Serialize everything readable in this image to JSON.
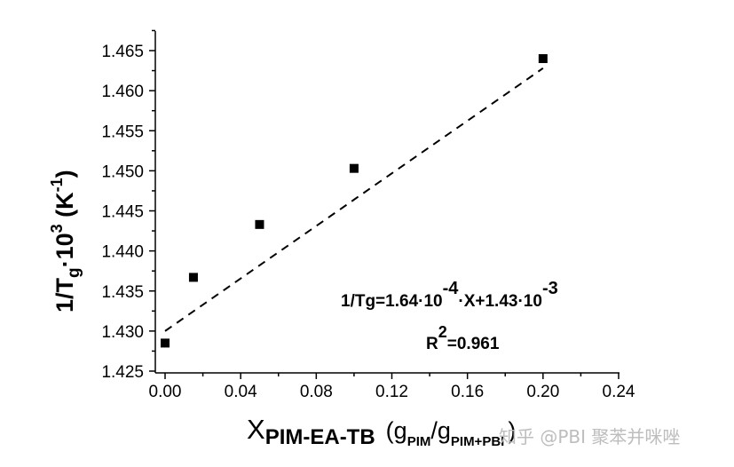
{
  "chart_data": {
    "type": "scatter",
    "title": "",
    "xlabel": "X_PIM-EA-TB (g_PIM/g_PIM+PBI)",
    "ylabel": "1/Tg·10^3 (K^-1)",
    "xlim": [
      -0.01,
      0.24
    ],
    "ylim": [
      1.425,
      1.4675
    ],
    "grid": false,
    "legend": null,
    "x_ticks": [
      "0.00",
      "0.04",
      "0.08",
      "0.12",
      "0.16",
      "0.20",
      "0.24"
    ],
    "y_ticks": [
      "1.425",
      "1.430",
      "1.435",
      "1.440",
      "1.445",
      "1.450",
      "1.455",
      "1.460",
      "1.465"
    ],
    "series": [
      {
        "name": "data",
        "marker": "square",
        "color": "#000000",
        "x": [
          0.0,
          0.015,
          0.05,
          0.1,
          0.2
        ],
        "y": [
          1.4285,
          1.4367,
          1.4433,
          1.4503,
          1.464
        ]
      },
      {
        "name": "linear fit",
        "style": "dashed",
        "color": "#000000",
        "x": [
          0.0,
          0.2
        ],
        "y": [
          1.43,
          1.4628
        ]
      }
    ],
    "annotations": [
      "1/Tg=1.64·10^-4·X+1.43·10^-3",
      "R^2=0.961"
    ]
  },
  "labels": {
    "y_title_main": "1/T",
    "y_title_sub": "g",
    "y_title_mid": "·10",
    "y_title_sup": "3",
    "y_title_end": " (K",
    "y_title_sup2": "-1",
    "y_title_close": ")",
    "x_title_main": "X",
    "x_title_sub": "PIM-EA-TB",
    "x_title_paren": "(g",
    "x_title_sub2": "PIM",
    "x_title_slash": "/g",
    "x_title_sub3": "PIM+PBI",
    "x_title_close": ")",
    "eq_part1": "1/Tg=1.64·10",
    "eq_sup1": "-4",
    "eq_part2": "·X+1.43·10",
    "eq_sup2": "-3",
    "r2_main": "R",
    "r2_sup": "2",
    "r2_val": "=0.961",
    "watermark": "知乎 @PBI 聚苯并咪唑"
  }
}
